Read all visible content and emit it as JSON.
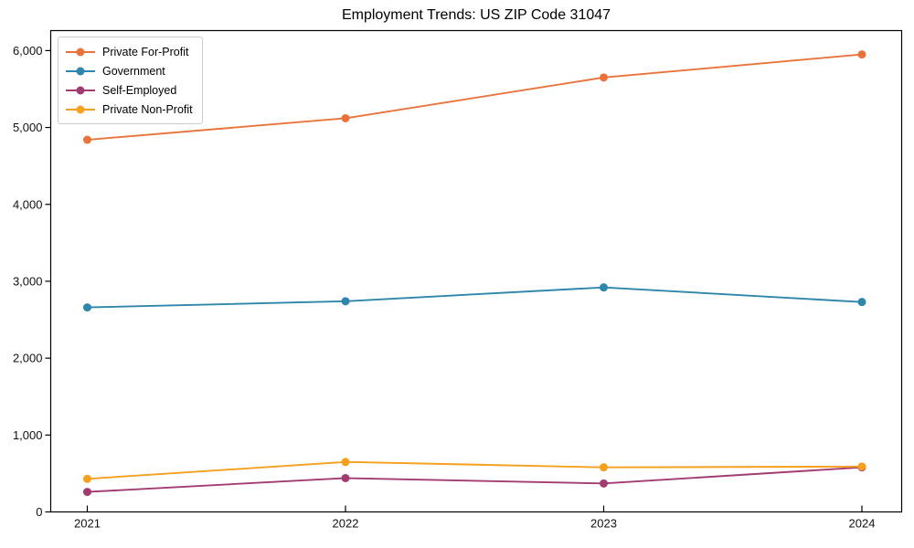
{
  "chart_data": {
    "type": "line",
    "title": "Employment Trends: US ZIP Code 31047",
    "categories": [
      "2021",
      "2022",
      "2023",
      "2024"
    ],
    "series": [
      {
        "name": "Private For-Profit",
        "color": "#E8743B",
        "values": [
          4840,
          5120,
          5650,
          5950
        ]
      },
      {
        "name": "Government",
        "color": "#2E86AB",
        "values": [
          2660,
          2740,
          2920,
          2730
        ]
      },
      {
        "name": "Self-Employed",
        "color": "#A23B72",
        "values": [
          260,
          440,
          370,
          580
        ]
      },
      {
        "name": "Private Non-Profit",
        "color": "#F5A01E",
        "values": [
          430,
          650,
          580,
          590
        ]
      }
    ],
    "xlabel": "",
    "ylabel": "",
    "ylim": [
      0,
      6260
    ],
    "yticks": [
      0,
      1000,
      2000,
      3000,
      4000,
      5000,
      6000
    ],
    "grid": false,
    "legend_position": "upper left",
    "axis_color": "#000000",
    "tick_label_color": "#111111"
  }
}
